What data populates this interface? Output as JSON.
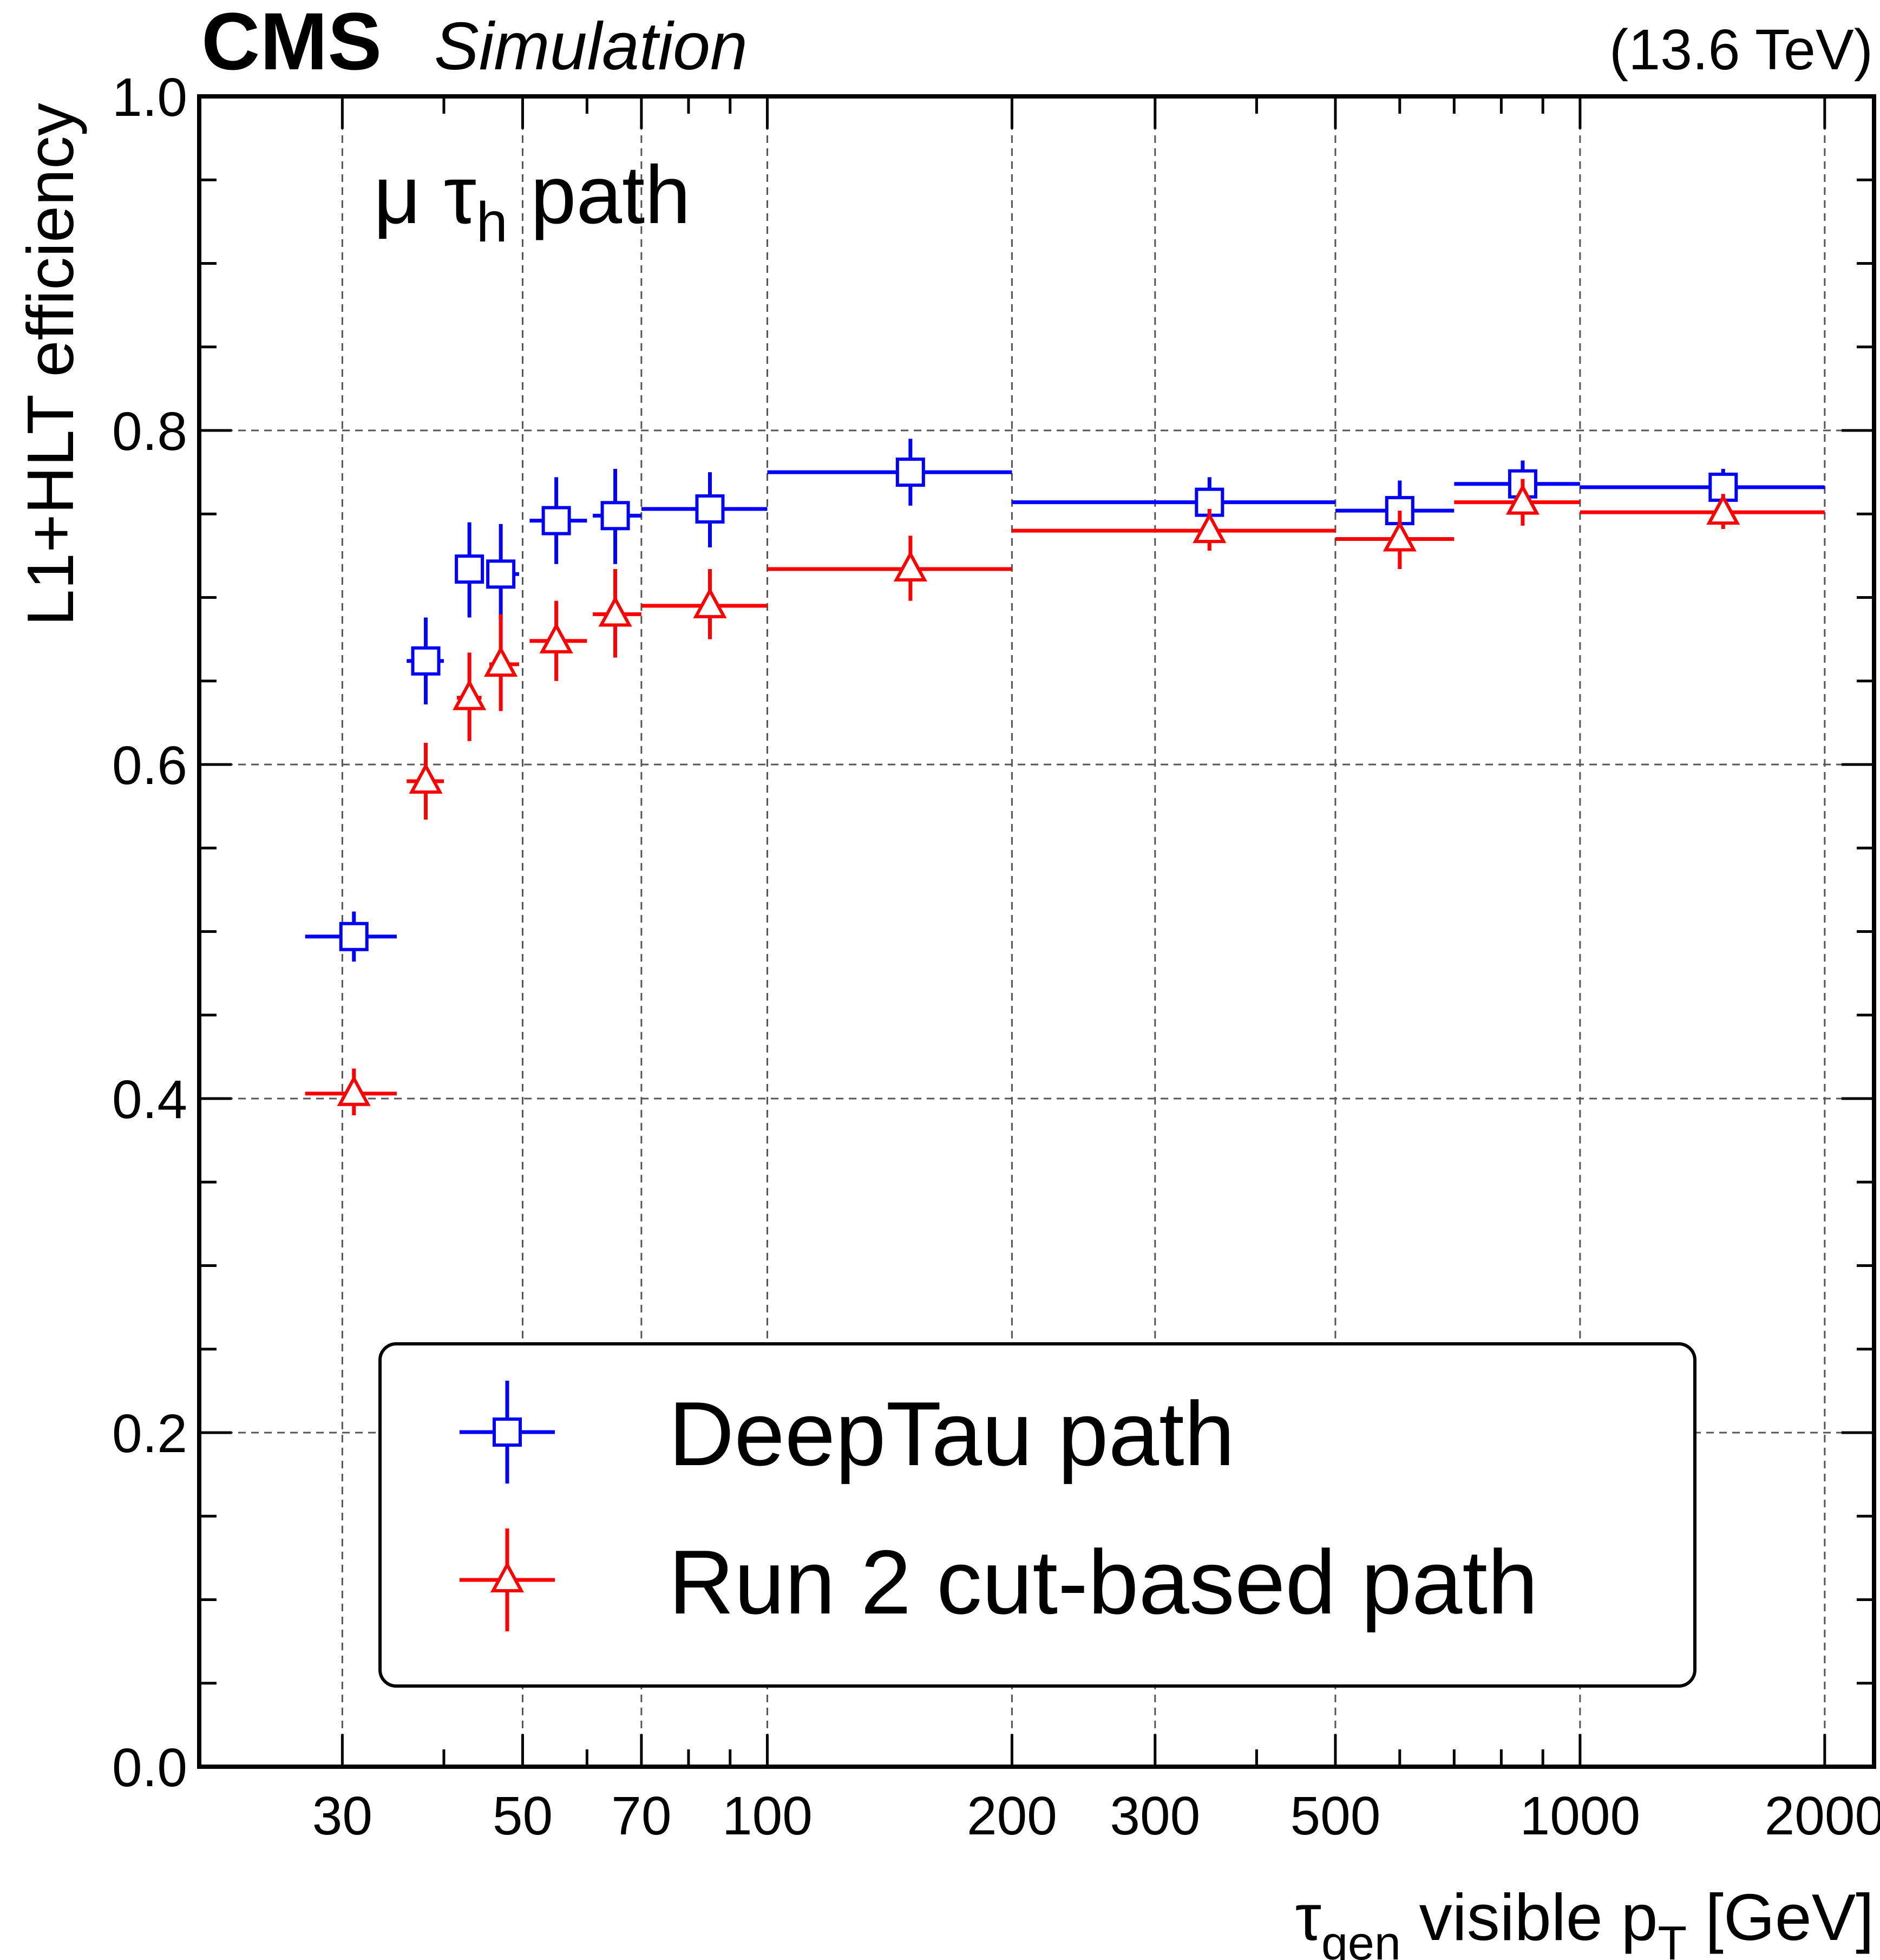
{
  "header": {
    "experiment": "CMS",
    "status": "Simulation",
    "energy": "(13.6 TeV)"
  },
  "annotation": {
    "main": "μ τ",
    "sub": "h",
    "suffix": " path"
  },
  "colors": {
    "deeptau": "#0000ff",
    "run2": "#ff0000"
  },
  "chart_data": {
    "type": "scatter",
    "xscale": "log",
    "xlim": [
      20,
      2300
    ],
    "ylim": [
      0.0,
      1.0
    ],
    "grid": true,
    "legend_position": "bottom-center",
    "xlabel": {
      "tau": "τ",
      "tau_sub": "gen",
      "mid": " visible p",
      "pt_sub": "T",
      "unit": " [GeV]"
    },
    "ylabel": "L1+HLT efficiency",
    "xticks": [
      30,
      50,
      70,
      100,
      200,
      300,
      500,
      1000,
      2000
    ],
    "xtick_labels": [
      "30",
      "50",
      "70",
      "100",
      "200",
      "300",
      "500",
      "1000",
      "2000"
    ],
    "yticks": [
      0.0,
      0.2,
      0.4,
      0.6,
      0.8,
      1.0
    ],
    "ytick_labels": [
      "0.0",
      "0.2",
      "0.4",
      "0.6",
      "0.8",
      "1.0"
    ],
    "series": [
      {
        "name": "DeepTau path",
        "marker": "open-square",
        "color": "#0000ff",
        "points": [
          {
            "x": 31,
            "xlo": 27,
            "xhi": 35,
            "y": 0.497,
            "ylo": 0.482,
            "yhi": 0.512
          },
          {
            "x": 38,
            "xlo": 36,
            "xhi": 40,
            "y": 0.662,
            "ylo": 0.636,
            "yhi": 0.688
          },
          {
            "x": 43,
            "xlo": 41.5,
            "xhi": 44.5,
            "y": 0.717,
            "ylo": 0.688,
            "yhi": 0.745
          },
          {
            "x": 47,
            "xlo": 45.5,
            "xhi": 49.5,
            "y": 0.714,
            "ylo": 0.686,
            "yhi": 0.744
          },
          {
            "x": 55,
            "xlo": 51,
            "xhi": 60,
            "y": 0.746,
            "ylo": 0.72,
            "yhi": 0.772
          },
          {
            "x": 65,
            "xlo": 61,
            "xhi": 70,
            "y": 0.749,
            "ylo": 0.72,
            "yhi": 0.777
          },
          {
            "x": 85,
            "xlo": 70,
            "xhi": 100,
            "y": 0.753,
            "ylo": 0.73,
            "yhi": 0.775
          },
          {
            "x": 150,
            "xlo": 100,
            "xhi": 200,
            "y": 0.775,
            "ylo": 0.755,
            "yhi": 0.795
          },
          {
            "x": 350,
            "xlo": 200,
            "xhi": 500,
            "y": 0.757,
            "ylo": 0.742,
            "yhi": 0.772
          },
          {
            "x": 600,
            "xlo": 500,
            "xhi": 700,
            "y": 0.752,
            "ylo": 0.734,
            "yhi": 0.77
          },
          {
            "x": 850,
            "xlo": 700,
            "xhi": 1000,
            "y": 0.768,
            "ylo": 0.754,
            "yhi": 0.782
          },
          {
            "x": 1500,
            "xlo": 1000,
            "xhi": 2000,
            "y": 0.766,
            "ylo": 0.755,
            "yhi": 0.777
          }
        ]
      },
      {
        "name": "Run 2 cut-based path",
        "marker": "open-triangle",
        "color": "#ff0000",
        "points": [
          {
            "x": 31,
            "xlo": 27,
            "xhi": 35,
            "y": 0.403,
            "ylo": 0.39,
            "yhi": 0.418
          },
          {
            "x": 38,
            "xlo": 36,
            "xhi": 40,
            "y": 0.59,
            "ylo": 0.567,
            "yhi": 0.613
          },
          {
            "x": 43,
            "xlo": 41.5,
            "xhi": 44.5,
            "y": 0.64,
            "ylo": 0.614,
            "yhi": 0.667
          },
          {
            "x": 47,
            "xlo": 45.5,
            "xhi": 49.5,
            "y": 0.66,
            "ylo": 0.632,
            "yhi": 0.69
          },
          {
            "x": 55,
            "xlo": 51,
            "xhi": 60,
            "y": 0.674,
            "ylo": 0.65,
            "yhi": 0.698
          },
          {
            "x": 65,
            "xlo": 61,
            "xhi": 70,
            "y": 0.69,
            "ylo": 0.664,
            "yhi": 0.717
          },
          {
            "x": 85,
            "xlo": 70,
            "xhi": 100,
            "y": 0.695,
            "ylo": 0.675,
            "yhi": 0.717
          },
          {
            "x": 150,
            "xlo": 100,
            "xhi": 200,
            "y": 0.717,
            "ylo": 0.698,
            "yhi": 0.737
          },
          {
            "x": 350,
            "xlo": 200,
            "xhi": 500,
            "y": 0.74,
            "ylo": 0.728,
            "yhi": 0.753
          },
          {
            "x": 600,
            "xlo": 500,
            "xhi": 700,
            "y": 0.735,
            "ylo": 0.717,
            "yhi": 0.752
          },
          {
            "x": 850,
            "xlo": 700,
            "xhi": 1000,
            "y": 0.757,
            "ylo": 0.743,
            "yhi": 0.771
          },
          {
            "x": 1500,
            "xlo": 1000,
            "xhi": 2000,
            "y": 0.751,
            "ylo": 0.741,
            "yhi": 0.762
          }
        ]
      }
    ]
  }
}
